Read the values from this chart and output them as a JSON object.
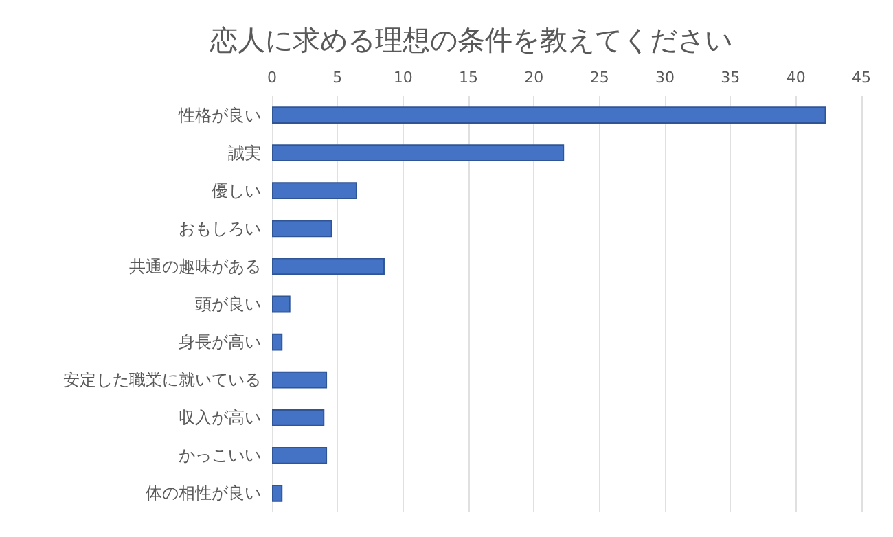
{
  "chart_data": {
    "type": "bar",
    "orientation": "horizontal",
    "title": "恋人に求める理想の条件を教えてください",
    "categories": [
      "性格が良い",
      "誠実",
      "優しい",
      "おもしろい",
      "共通の趣味がある",
      "頭が良い",
      "身長が高い",
      "安定した職業に就いている",
      "収入が高い",
      "かっこいい",
      "体の相性が良い"
    ],
    "values": [
      42.3,
      22.3,
      6.5,
      4.6,
      8.6,
      1.4,
      0.8,
      4.2,
      4.0,
      4.2,
      0.8
    ],
    "color": "#4472c4",
    "xlim": [
      0,
      45
    ],
    "xticks": [
      0,
      5,
      10,
      15,
      20,
      25,
      30,
      35,
      40,
      45
    ],
    "grid": "x"
  }
}
